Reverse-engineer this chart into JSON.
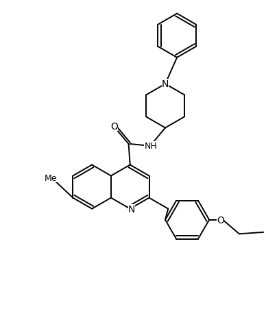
{
  "bg_color": "#ffffff",
  "line_color": "#000000",
  "lw": 1.4,
  "fs": 9,
  "figsize": [
    3.88,
    4.52
  ],
  "dpi": 100,
  "xlim": [
    0,
    9
  ],
  "ylim": [
    0,
    10.5
  ]
}
